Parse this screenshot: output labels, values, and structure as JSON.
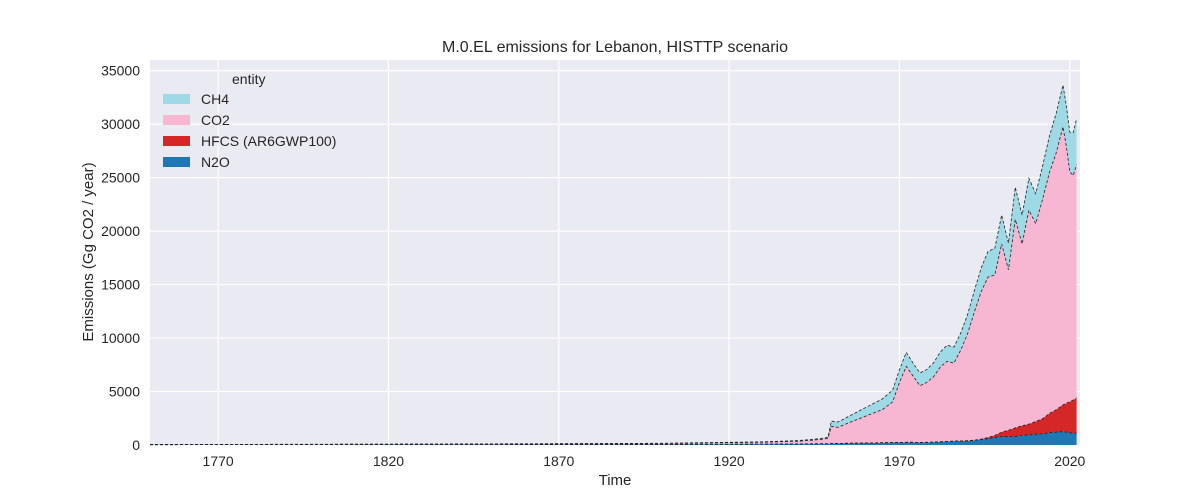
{
  "chart_data": {
    "type": "area",
    "stacked": true,
    "title": "M.0.EL emissions for Lebanon, HISTTP scenario",
    "xlabel": "Time",
    "ylabel": "Emissions (Gg CO2 / year)",
    "xlim": [
      1750,
      2023
    ],
    "ylim": [
      0,
      36000
    ],
    "xticks": [
      1770,
      1820,
      1870,
      1920,
      1970,
      2020
    ],
    "yticks": [
      0,
      5000,
      10000,
      15000,
      20000,
      25000,
      30000,
      35000
    ],
    "xtick_labels": [
      "1770",
      "1820",
      "1870",
      "1920",
      "1970",
      "2020"
    ],
    "ytick_labels": [
      "0",
      "5000",
      "10000",
      "15000",
      "20000",
      "25000",
      "30000",
      "35000"
    ],
    "grid": true,
    "legend": {
      "title": "entity",
      "placement": "top-left"
    },
    "background": "#eaeaf2",
    "x": [
      1750,
      1800,
      1850,
      1900,
      1930,
      1940,
      1945,
      1948,
      1949,
      1950,
      1952,
      1955,
      1960,
      1965,
      1968,
      1970,
      1972,
      1974,
      1976,
      1978,
      1980,
      1982,
      1984,
      1986,
      1988,
      1990,
      1992,
      1994,
      1996,
      1998,
      2000,
      2002,
      2004,
      2006,
      2008,
      2010,
      2012,
      2014,
      2016,
      2018,
      2019,
      2020,
      2021,
      2022
    ],
    "series": [
      {
        "name": "N2O",
        "color": "#1f77b4",
        "values": [
          30,
          40,
          50,
          60,
          80,
          100,
          110,
          120,
          120,
          130,
          150,
          160,
          190,
          210,
          230,
          240,
          250,
          250,
          240,
          250,
          270,
          300,
          330,
          360,
          380,
          400,
          450,
          500,
          600,
          700,
          800,
          780,
          800,
          900,
          950,
          1000,
          1050,
          1150,
          1200,
          1250,
          1200,
          1150,
          1100,
          1100
        ]
      },
      {
        "name": "HFCS (AR6GWP100)",
        "color": "#d62728",
        "values": [
          0,
          0,
          0,
          0,
          0,
          0,
          0,
          0,
          0,
          0,
          0,
          0,
          0,
          0,
          0,
          0,
          0,
          0,
          0,
          0,
          0,
          0,
          0,
          0,
          0,
          0,
          0,
          50,
          100,
          200,
          400,
          600,
          800,
          900,
          1000,
          1200,
          1400,
          1800,
          2100,
          2500,
          2700,
          2900,
          3100,
          3300
        ]
      },
      {
        "name": "CO2",
        "color": "#f7b6d2",
        "values": [
          10,
          20,
          40,
          80,
          180,
          250,
          350,
          450,
          500,
          1600,
          1500,
          1900,
          2500,
          3100,
          3800,
          5600,
          7100,
          6200,
          5300,
          5600,
          6100,
          7000,
          7500,
          7300,
          8500,
          10000,
          12000,
          13800,
          15000,
          15000,
          17600,
          15000,
          19500,
          17000,
          20000,
          18500,
          20500,
          22500,
          24000,
          26000,
          24000,
          21500,
          21000,
          21800
        ]
      },
      {
        "name": "CH4",
        "color": "#9edae5",
        "values": [
          5,
          10,
          15,
          20,
          40,
          60,
          80,
          90,
          100,
          500,
          500,
          600,
          800,
          1000,
          1100,
          1200,
          1300,
          1200,
          1200,
          1200,
          1300,
          1400,
          1500,
          1500,
          1600,
          1800,
          2000,
          2200,
          2400,
          2500,
          2700,
          2500,
          3000,
          2700,
          3000,
          2800,
          3100,
          3400,
          3700,
          3900,
          3800,
          3700,
          4000,
          4300
        ]
      }
    ],
    "legend_order": [
      "CH4",
      "CO2",
      "HFCS (AR6GWP100)",
      "N2O"
    ]
  }
}
